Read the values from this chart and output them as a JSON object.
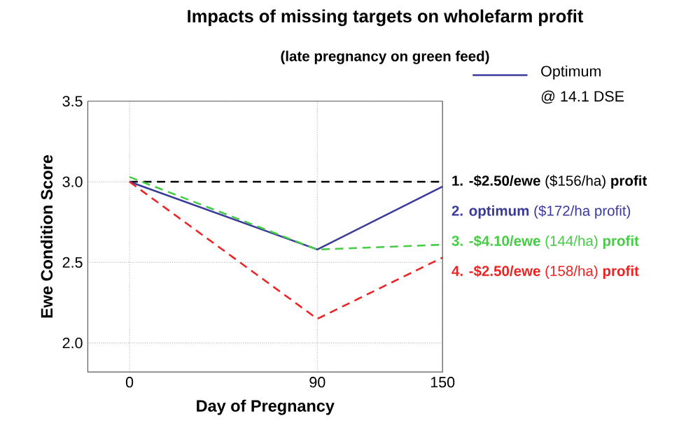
{
  "chart_data": {
    "type": "line",
    "title": "Impacts of missing targets on wholefarm profit",
    "subtitle": "(late pregnancy on green feed)",
    "xlabel": "Day of Pregnancy",
    "ylabel": "Ewe Condition Score",
    "x": [
      0,
      90,
      150
    ],
    "series": [
      {
        "name": "**1. -$2.50/ewe** ($156/ha) **profit**",
        "color": "#000000",
        "line_style": "dashed",
        "values": [
          3.0,
          null,
          3.0
        ]
      },
      {
        "name": "**2. optimum** ($172/ha profit)",
        "color": "#3a3a9a",
        "line_style": "solid",
        "values": [
          3.0,
          2.58,
          2.97
        ]
      },
      {
        "name": "**3. -$4.10/ewe** (144/ha) **profit**",
        "color": "#44cc44",
        "line_style": "dashed",
        "values": [
          3.03,
          2.58,
          2.61
        ]
      },
      {
        "name": "**4. -$2.50/ewe** (158/ha) **profit**",
        "color": "#ee2222",
        "line_style": "dashed",
        "values": [
          3.0,
          2.15,
          2.53
        ]
      }
    ],
    "annotations": [
      "Optimum",
      "@ 14.1 DSE"
    ],
    "xlim": [
      -20,
      150
    ],
    "ylim": [
      1.82,
      3.5
    ],
    "xticks": [
      0,
      90,
      150
    ],
    "yticks": [
      {
        "value": 2,
        "label": "2.0"
      },
      {
        "value": 2.5,
        "label": "2.5"
      },
      {
        "value": 3,
        "label": "3.0"
      },
      {
        "value": 3.5,
        "label": "3.5"
      }
    ],
    "grid": true,
    "marker": "none"
  }
}
